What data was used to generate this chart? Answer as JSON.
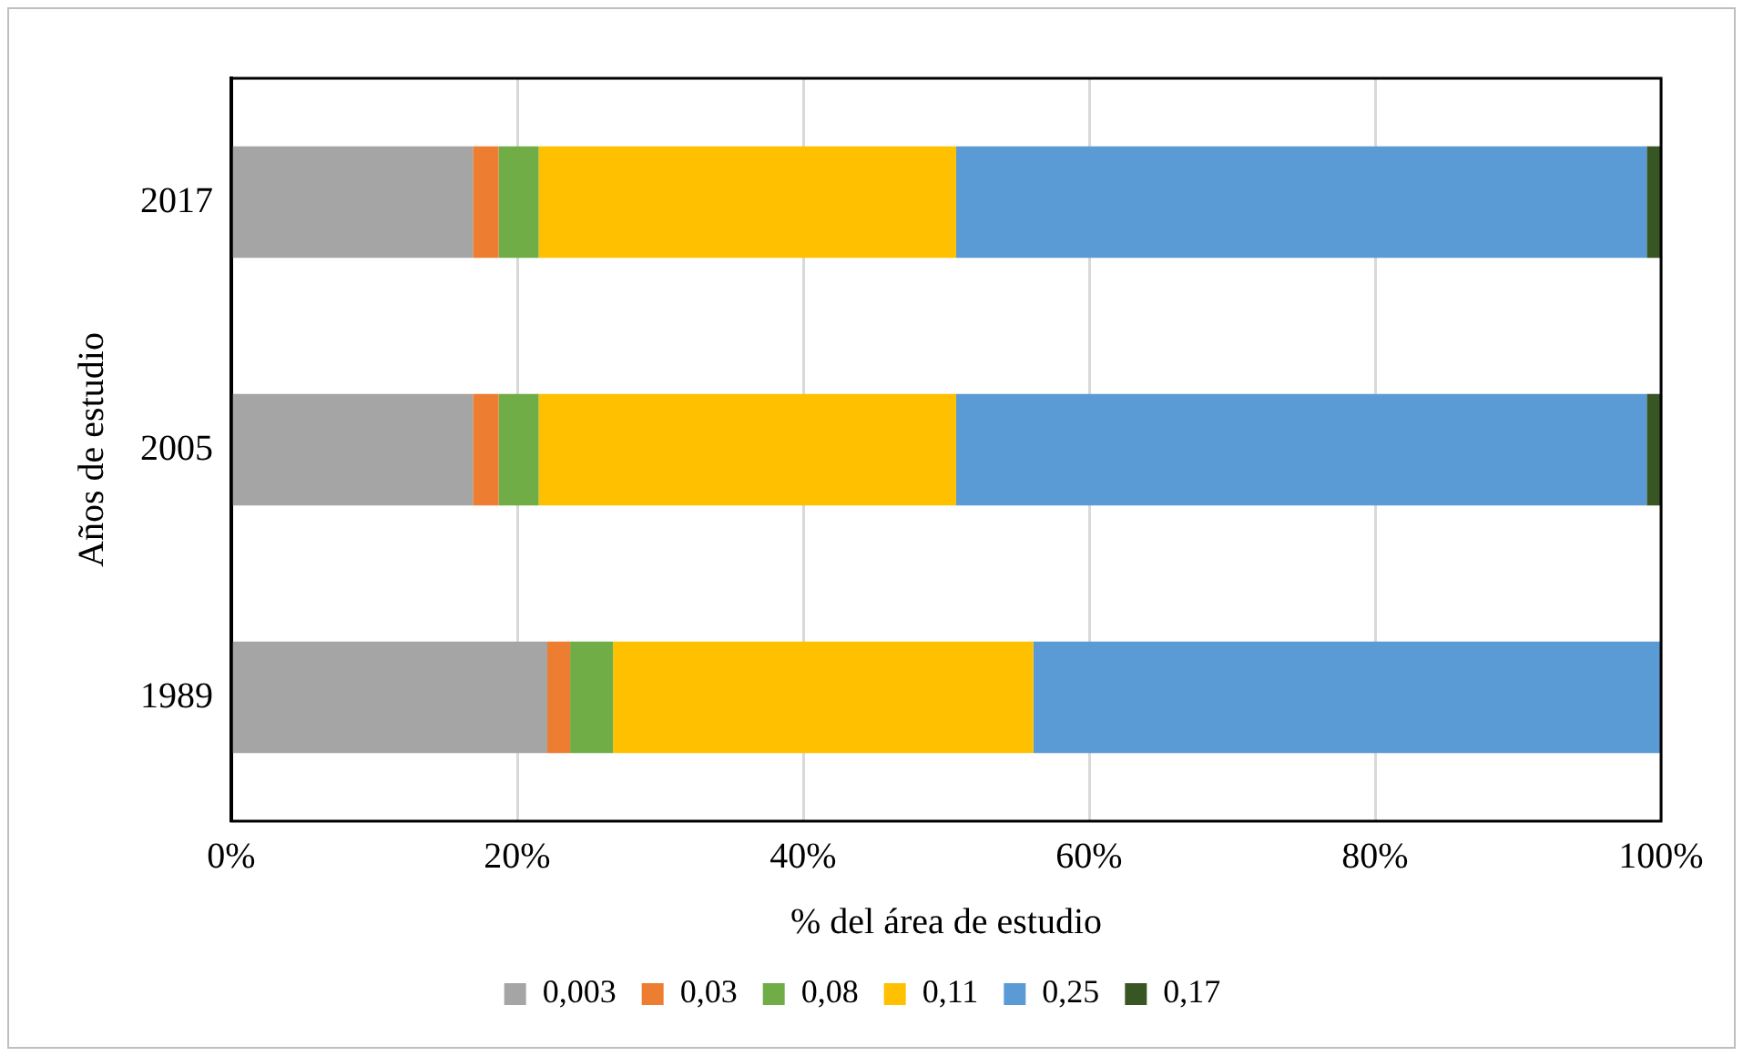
{
  "chart_data": {
    "type": "bar",
    "orientation": "horizontal",
    "stacked": true,
    "xlabel": "% del área de estudio",
    "ylabel": "Años de estudio",
    "categories": [
      "2017",
      "2005",
      "1989"
    ],
    "series": [
      {
        "name": "0,003",
        "color": "#a5a5a5",
        "values": [
          16.9,
          16.9,
          22.1
        ]
      },
      {
        "name": "0,03",
        "color": "#ed7d31",
        "values": [
          1.8,
          1.8,
          1.6
        ]
      },
      {
        "name": "0,08",
        "color": "#70ad47",
        "values": [
          2.8,
          2.8,
          3.0
        ]
      },
      {
        "name": "0,11",
        "color": "#ffc000",
        "values": [
          29.2,
          29.2,
          29.4
        ]
      },
      {
        "name": "0,25",
        "color": "#5b9bd5",
        "values": [
          48.3,
          48.3,
          43.9
        ]
      },
      {
        "name": "0,17",
        "color": "#375623",
        "values": [
          1.0,
          1.0,
          0
        ]
      }
    ],
    "xlim": [
      0,
      100
    ],
    "xticks": [
      {
        "value": 0,
        "label": "0%"
      },
      {
        "value": 20,
        "label": "20%"
      },
      {
        "value": 40,
        "label": "40%"
      },
      {
        "value": 60,
        "label": "60%"
      },
      {
        "value": 80,
        "label": "80%"
      },
      {
        "value": 100,
        "label": "100%"
      }
    ],
    "grid": "x",
    "legend": "bottom"
  }
}
